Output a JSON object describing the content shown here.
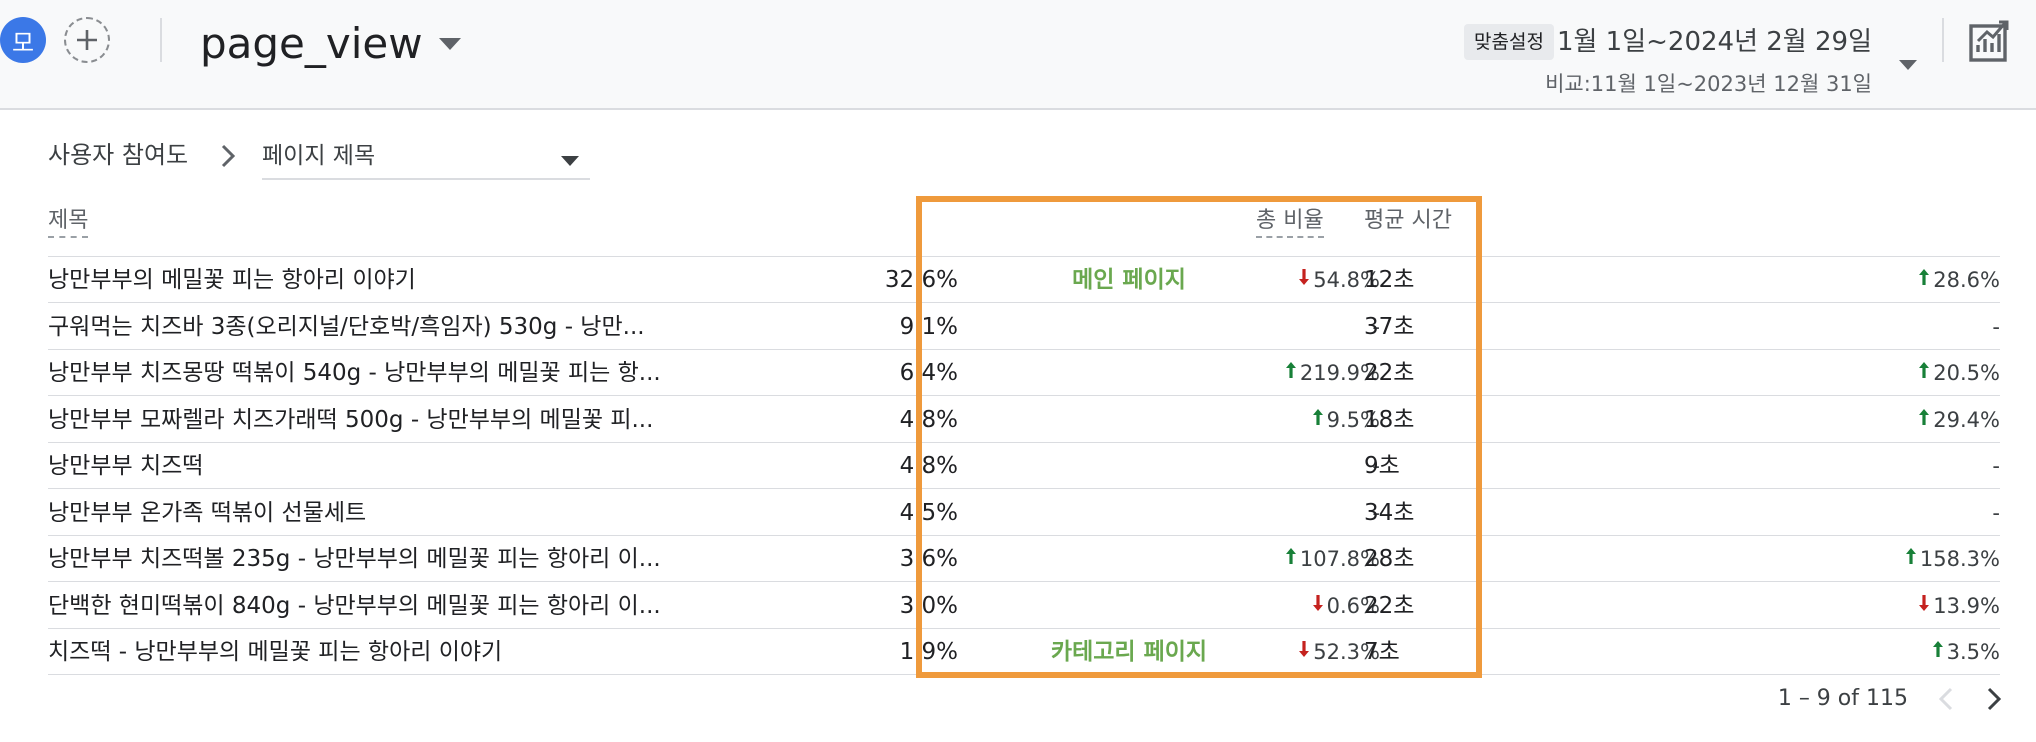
{
  "header": {
    "avatar_letter": "모",
    "event_name": "page_view",
    "date_badge": "맞춤설정",
    "date_range": "1월 1일~2024년 2월 29일",
    "compare_range": "비교:11월 1일~2023년 12월 31일",
    "icons": [
      "plus-icon",
      "caret-down-icon",
      "insights-chart-icon"
    ]
  },
  "breadcrumb": {
    "parent": "사용자 참여도",
    "dimension": "페이지 제목"
  },
  "table": {
    "headers": {
      "title": "제목",
      "ratio": "총 비율",
      "avg_time": "평균 시간"
    },
    "rows": [
      {
        "title": "낭만부부의 메밀꽃 피는 항아리 이야기",
        "share": "32.6%",
        "note": "메인 페이지",
        "change1": "54.8%",
        "change1_dir": "down",
        "time": "12초",
        "change2": "28.6%",
        "change2_dir": "up"
      },
      {
        "title": "구워먹는 치즈바 3종(오리지널/단호박/흑임자) 530g - 낭만...",
        "share": "9.1%",
        "note": "",
        "change1": "-",
        "change1_dir": "none",
        "time": "37초",
        "change2": "-",
        "change2_dir": "none"
      },
      {
        "title": "낭만부부 치즈몽땅 떡볶이 540g - 낭만부부의 메밀꽃 피는 항...",
        "share": "6.4%",
        "note": "",
        "change1": "219.9%",
        "change1_dir": "up",
        "time": "22초",
        "change2": "20.5%",
        "change2_dir": "up"
      },
      {
        "title": "낭만부부 모짜렐라 치즈가래떡 500g - 낭만부부의 메밀꽃 피...",
        "share": "4.8%",
        "note": "",
        "change1": "9.5%",
        "change1_dir": "up",
        "time": "18초",
        "change2": "29.4%",
        "change2_dir": "up"
      },
      {
        "title": "낭만부부 치즈떡",
        "share": "4.8%",
        "note": "",
        "change1": "-",
        "change1_dir": "none",
        "time": "9초",
        "change2": "-",
        "change2_dir": "none"
      },
      {
        "title": "낭만부부 온가족 떡볶이 선물세트",
        "share": "4.5%",
        "note": "",
        "change1": "-",
        "change1_dir": "none",
        "time": "34초",
        "change2": "-",
        "change2_dir": "none"
      },
      {
        "title": "낭만부부 치즈떡볼 235g - 낭만부부의 메밀꽃 피는 항아리 이...",
        "share": "3.6%",
        "note": "",
        "change1": "107.8%",
        "change1_dir": "up",
        "time": "28초",
        "change2": "158.3%",
        "change2_dir": "up"
      },
      {
        "title": "단백한 현미떡볶이 840g - 낭만부부의 메밀꽃 피는 항아리 이...",
        "share": "3.0%",
        "note": "",
        "change1": "0.6%",
        "change1_dir": "down",
        "time": "22초",
        "change2": "13.9%",
        "change2_dir": "down"
      },
      {
        "title": "치즈떡 - 낭만부부의 메밀꽃 피는 항아리 이야기",
        "share": "1.9%",
        "note": "카테고리 페이지",
        "change1": "52.3%",
        "change1_dir": "down",
        "time": "7초",
        "change2": "3.5%",
        "change2_dir": "up"
      }
    ]
  },
  "pagination": {
    "label": "1 – 9 of 115"
  },
  "colors": {
    "up": "#188038",
    "down": "#c5221f",
    "highlight": "#ef9a3c",
    "note": "#6aa84f",
    "avatar": "#3b78e7"
  }
}
